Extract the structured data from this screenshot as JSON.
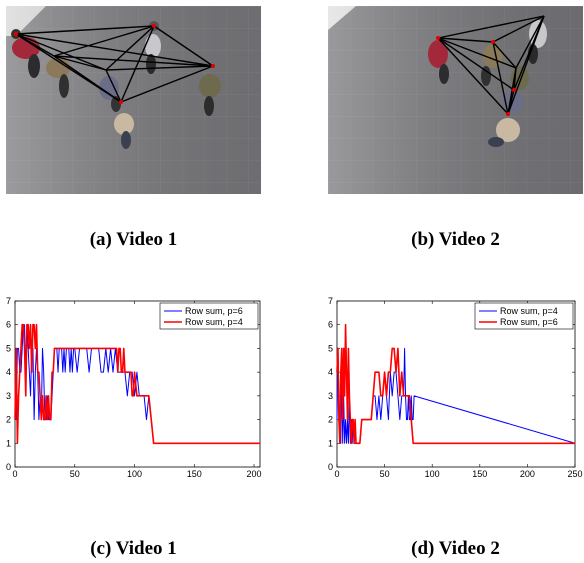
{
  "figures": [
    {
      "id": "a",
      "caption": "(a) Video 1"
    },
    {
      "id": "b",
      "caption": "(b) Video 2"
    },
    {
      "id": "c",
      "caption": "(c) Video 1"
    },
    {
      "id": "d",
      "caption": "(d) Video 2"
    }
  ],
  "colors": {
    "blue": "#0000ff",
    "red": "#ff0000"
  },
  "chart_data": [
    {
      "type": "line",
      "xlim": [
        0,
        205
      ],
      "ylim": [
        0,
        7
      ],
      "xticks": [
        0,
        50,
        100,
        150,
        200
      ],
      "yticks": [
        0,
        1,
        2,
        3,
        4,
        5,
        6,
        7
      ],
      "legend_position": "top-right",
      "series": [
        {
          "name": "Row sum, p=6",
          "color": "#0000ff",
          "x": [
            0,
            1,
            2,
            3,
            4,
            5,
            6,
            7,
            8,
            9,
            10,
            11,
            12,
            13,
            14,
            15,
            16,
            17,
            18,
            19,
            20,
            21,
            22,
            23,
            24,
            25,
            26,
            27,
            28,
            29,
            30,
            31,
            32,
            33,
            34,
            35,
            36,
            37,
            38,
            39,
            40,
            41,
            42,
            43,
            44,
            45,
            46,
            47,
            48,
            49,
            50,
            52,
            54,
            56,
            58,
            60,
            62,
            64,
            66,
            68,
            70,
            72,
            74,
            76,
            78,
            80,
            82,
            84,
            86,
            88,
            90,
            92,
            94,
            96,
            98,
            100,
            102,
            104,
            106,
            108,
            110,
            112,
            114,
            116,
            118,
            120,
            205
          ],
          "y": [
            3,
            2,
            5,
            5,
            4,
            4,
            5,
            6,
            6,
            4,
            6,
            5,
            4,
            3,
            5,
            5,
            2,
            4,
            5,
            4,
            2,
            3,
            2,
            5,
            4,
            2,
            2,
            3,
            2,
            2,
            2,
            3,
            4,
            5,
            5,
            5,
            4,
            5,
            5,
            5,
            4,
            5,
            4,
            5,
            5,
            5,
            4,
            5,
            4,
            5,
            5,
            4,
            5,
            5,
            5,
            5,
            4,
            5,
            5,
            5,
            5,
            4,
            4,
            5,
            4,
            5,
            4,
            5,
            4,
            4,
            4,
            4,
            3,
            4,
            4,
            3,
            4,
            3,
            3,
            3,
            2,
            3,
            2,
            1,
            1,
            1,
            1
          ]
        },
        {
          "name": "Row sum, p=4",
          "color": "#ff0000",
          "x": [
            0,
            1,
            2,
            3,
            4,
            5,
            6,
            7,
            8,
            9,
            10,
            11,
            12,
            13,
            14,
            15,
            16,
            17,
            18,
            19,
            20,
            21,
            22,
            23,
            24,
            25,
            26,
            27,
            28,
            29,
            30,
            31,
            32,
            33,
            34,
            35,
            40,
            50,
            60,
            70,
            80,
            85,
            86,
            87,
            88,
            89,
            90,
            91,
            92,
            93,
            94,
            95,
            96,
            97,
            98,
            99,
            100,
            102,
            104,
            106,
            108,
            110,
            112,
            114,
            116,
            118,
            120,
            205
          ],
          "y": [
            2,
            5,
            1,
            3,
            4,
            5,
            6,
            6,
            5,
            3,
            6,
            6,
            5,
            6,
            4,
            6,
            6,
            5,
            6,
            4,
            4,
            3,
            2,
            3,
            2,
            2,
            3,
            2,
            3,
            2,
            2,
            4,
            4,
            5,
            5,
            5,
            5,
            5,
            5,
            5,
            5,
            5,
            4,
            5,
            5,
            4,
            4,
            5,
            4,
            4,
            4,
            4,
            4,
            4,
            3,
            3,
            4,
            3,
            3,
            3,
            3,
            3,
            3,
            2,
            1,
            1,
            1,
            1
          ]
        }
      ]
    },
    {
      "type": "line",
      "xlim": [
        0,
        250
      ],
      "ylim": [
        0,
        7
      ],
      "xticks": [
        0,
        50,
        100,
        150,
        200,
        250
      ],
      "yticks": [
        0,
        1,
        2,
        3,
        4,
        5,
        6,
        7
      ],
      "legend_position": "top-right",
      "series": [
        {
          "name": "Row sum, p=4",
          "color": "#0000ff",
          "x": [
            0,
            1,
            2,
            3,
            4,
            5,
            6,
            7,
            8,
            9,
            10,
            11,
            12,
            13,
            14,
            15,
            16,
            17,
            18,
            19,
            20,
            22,
            24,
            26,
            28,
            30,
            32,
            34,
            36,
            38,
            40,
            42,
            44,
            46,
            48,
            50,
            52,
            54,
            56,
            58,
            60,
            62,
            64,
            66,
            68,
            70,
            71,
            72,
            73,
            74,
            75,
            76,
            77,
            78,
            79,
            80,
            81,
            250
          ],
          "y": [
            2,
            5,
            3,
            1,
            1,
            4,
            1,
            3,
            1,
            2,
            1,
            2,
            1,
            3,
            1,
            2,
            1,
            2,
            1,
            1,
            1,
            1,
            1,
            2,
            2,
            2,
            2,
            2,
            2,
            3,
            3,
            2,
            3,
            2,
            3,
            4,
            3,
            2,
            4,
            3,
            4,
            4,
            3,
            2,
            3,
            3,
            5,
            3,
            2,
            2,
            3,
            2,
            2,
            3,
            2,
            2,
            3,
            1
          ]
        },
        {
          "name": "Row sum, p=6",
          "color": "#ff0000",
          "x": [
            0,
            1,
            2,
            3,
            4,
            5,
            6,
            7,
            8,
            9,
            10,
            11,
            12,
            13,
            14,
            15,
            16,
            17,
            18,
            19,
            20,
            22,
            24,
            26,
            28,
            30,
            32,
            34,
            36,
            38,
            40,
            42,
            44,
            46,
            48,
            50,
            52,
            54,
            56,
            58,
            60,
            62,
            64,
            66,
            68,
            70,
            72,
            74,
            76,
            78,
            80,
            82,
            250
          ],
          "y": [
            4,
            5,
            2,
            1,
            4,
            5,
            2,
            5,
            3,
            6,
            4,
            2,
            5,
            3,
            2,
            1,
            2,
            2,
            1,
            2,
            1,
            1,
            1,
            2,
            2,
            2,
            2,
            2,
            2,
            3,
            4,
            4,
            4,
            3,
            3,
            4,
            3,
            4,
            4,
            5,
            5,
            4,
            5,
            3,
            4,
            3,
            3,
            3,
            3,
            2,
            1,
            1,
            1
          ]
        }
      ]
    }
  ]
}
